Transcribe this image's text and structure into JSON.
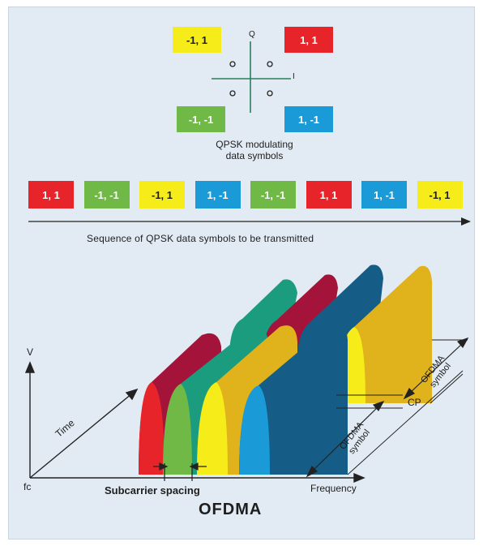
{
  "constellation": {
    "q_label": "Q",
    "i_label": "I",
    "symbols": [
      {
        "label": "-1, 1",
        "color": "#f6ec19"
      },
      {
        "label": "1, 1",
        "color": "#e8242b"
      },
      {
        "label": "-1, -1",
        "color": "#71b946"
      },
      {
        "label": "1, -1",
        "color": "#1a9ad6"
      }
    ],
    "caption_line1": "QPSK modulating",
    "caption_line2": "data symbols"
  },
  "sequence": {
    "symbols": [
      {
        "label": "1, 1",
        "color": "#e8242b"
      },
      {
        "label": "-1, -1",
        "color": "#71b946"
      },
      {
        "label": "-1, 1",
        "color": "#f6ec19"
      },
      {
        "label": "1, -1",
        "color": "#1a9ad6"
      },
      {
        "label": "-1, -1",
        "color": "#71b946"
      },
      {
        "label": "1, 1",
        "color": "#e8242b"
      },
      {
        "label": "1, -1",
        "color": "#1a9ad6"
      },
      {
        "label": "-1, 1",
        "color": "#f6ec19"
      }
    ],
    "caption": "Sequence of QPSK data symbols to be transmitted"
  },
  "diagram": {
    "v_label": "V",
    "fc_label": "fc",
    "time_label": "Time",
    "frequency_label": "Frequency",
    "subcarrier_label": "Subcarrier spacing",
    "cp_label": "CP",
    "ofdma_symbol_line1": "OFDMA",
    "ofdma_symbol_line2": "symbol",
    "title": "OFDMA",
    "colors": {
      "red": "#e8242b",
      "green": "#71b946",
      "yellow": "#f6ec19",
      "blue": "#1a9ad6",
      "dark_red": "#a4143a",
      "teal": "#1c9c7e",
      "gold": "#e0b21b",
      "navy": "#155d86"
    }
  }
}
